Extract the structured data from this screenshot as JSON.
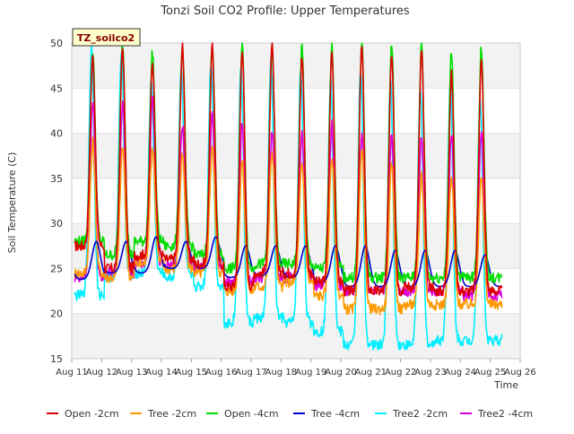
{
  "chart_data": {
    "type": "line",
    "title": "Tonzi Soil CO2 Profile: Upper Temperatures",
    "xlabel": "Time",
    "ylabel": "Soil Temperature (C)",
    "site_label": "TZ_soilco2",
    "xlim": [
      "Aug 11",
      "Aug 26"
    ],
    "ylim": [
      15,
      50
    ],
    "x_ticks": [
      "Aug 11",
      "Aug 12",
      "Aug 13",
      "Aug 14",
      "Aug 15",
      "Aug 16",
      "Aug 17",
      "Aug 18",
      "Aug 19",
      "Aug 20",
      "Aug 21",
      "Aug 22",
      "Aug 23",
      "Aug 24",
      "Aug 25",
      "Aug 26"
    ],
    "y_ticks": [
      15,
      20,
      25,
      30,
      35,
      40,
      45,
      50
    ],
    "grid": "horizontal bands",
    "legend_position": "bottom",
    "x_unit": "day of August (local time)",
    "series": [
      {
        "name": "Open -2cm",
        "color": "#dd0000",
        "daily_min": [
          27.5,
          25.0,
          26.5,
          26.0,
          25.5,
          23.0,
          24.5,
          24.5,
          23.5,
          22.5,
          22.5,
          23.0,
          22.5,
          22.5
        ],
        "daily_max": [
          48.5,
          49.5,
          48.0,
          49.5,
          49.5,
          49.5,
          49.5,
          48.5,
          49.0,
          49.5,
          49.0,
          49.0,
          46.5,
          48.0
        ]
      },
      {
        "name": "Tree -2cm",
        "color": "#ff9900",
        "daily_min": [
          24.5,
          24.0,
          25.5,
          25.0,
          24.5,
          22.5,
          23.0,
          23.5,
          22.0,
          20.5,
          20.5,
          21.0,
          21.0,
          21.0
        ],
        "daily_max": [
          39.0,
          38.5,
          38.5,
          37.5,
          38.5,
          37.0,
          38.0,
          36.5,
          37.5,
          38.5,
          36.5,
          35.5,
          35.0,
          35.0
        ]
      },
      {
        "name": "Open -4cm",
        "color": "#00dd00",
        "daily_min": [
          28.0,
          26.5,
          28.0,
          27.5,
          26.5,
          25.0,
          25.5,
          25.5,
          25.0,
          24.0,
          24.0,
          24.0,
          24.0,
          24.0
        ],
        "daily_max": [
          49.0,
          50.0,
          49.0,
          49.5,
          50.0,
          50.0,
          49.5,
          49.5,
          50.0,
          50.0,
          50.0,
          50.0,
          49.0,
          49.5
        ]
      },
      {
        "name": "Tree -4cm",
        "color": "#0000cc",
        "daily_min": [
          23.8,
          24.5,
          24.5,
          25.0,
          25.0,
          24.0,
          24.2,
          24.0,
          23.5,
          23.0,
          23.0,
          23.0,
          23.0,
          23.0
        ],
        "daily_max": [
          28.0,
          28.0,
          28.5,
          28.0,
          28.5,
          27.5,
          27.5,
          27.5,
          27.5,
          27.5,
          27.0,
          27.0,
          27.0,
          26.5
        ]
      },
      {
        "name": "Tree2 -2cm",
        "color": "#00eeff",
        "daily_min": [
          22.0,
          24.0,
          24.5,
          24.0,
          23.0,
          19.0,
          19.5,
          19.0,
          18.0,
          16.5,
          16.5,
          16.5,
          17.0,
          17.0
        ],
        "daily_max": [
          49.5,
          49.0,
          46.0,
          47.0,
          48.0,
          47.5,
          48.0,
          47.0,
          46.5,
          47.0,
          46.0,
          45.5,
          45.5,
          44.0
        ]
      },
      {
        "name": "Tree2 -4cm",
        "color": "#dd00dd",
        "daily_min": [
          24.0,
          24.5,
          25.5,
          25.5,
          25.0,
          23.5,
          24.0,
          24.0,
          23.0,
          22.5,
          22.5,
          22.5,
          22.5,
          22.0
        ],
        "daily_max": [
          43.5,
          43.5,
          44.0,
          41.0,
          42.0,
          41.0,
          40.0,
          40.0,
          41.0,
          40.0,
          40.0,
          40.0,
          40.0,
          40.0
        ]
      }
    ]
  }
}
